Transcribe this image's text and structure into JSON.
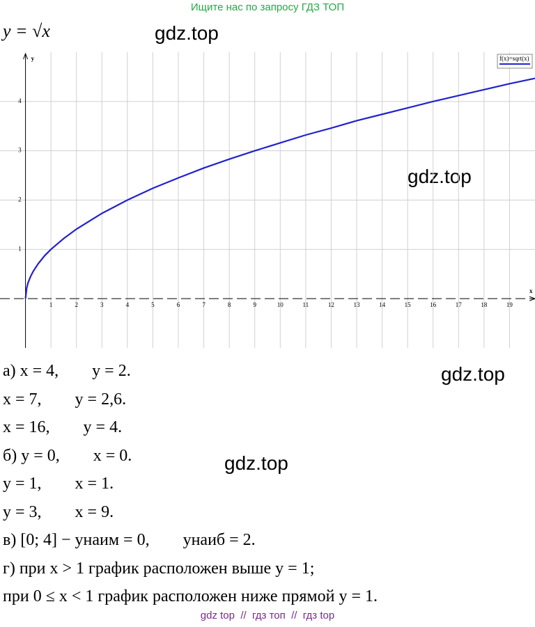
{
  "header": "Ищите нас по запросу ГДЗ ТОП",
  "formula": "y = √x",
  "watermarks": [
    "gdz.top",
    "gdz.top",
    "gdz.top",
    "gdz.top"
  ],
  "chart_data": {
    "type": "line",
    "x_label": "x",
    "y_label": "y",
    "x": [
      0,
      0.05,
      0.1,
      0.2,
      0.3,
      0.5,
      0.75,
      1,
      1.5,
      2,
      3,
      4,
      5,
      6,
      7,
      8,
      9,
      10,
      11,
      12,
      13,
      14,
      15,
      16,
      17,
      18,
      19,
      20
    ],
    "series": [
      {
        "name": "f(x)=sqrt(x)",
        "color": "#2222cc",
        "values": [
          0,
          0.22,
          0.32,
          0.45,
          0.55,
          0.71,
          0.87,
          1,
          1.22,
          1.41,
          1.73,
          2,
          2.24,
          2.45,
          2.65,
          2.83,
          3,
          3.16,
          3.32,
          3.46,
          3.61,
          3.74,
          3.87,
          4,
          4.12,
          4.24,
          4.36,
          4.47
        ]
      }
    ],
    "xlim": [
      -1,
      20
    ],
    "ylim": [
      -1,
      5
    ],
    "xticks": [
      1,
      2,
      3,
      4,
      5,
      6,
      7,
      8,
      9,
      10,
      11,
      12,
      13,
      14,
      15,
      16,
      17,
      18,
      19
    ],
    "yticks": [
      1,
      2,
      3,
      4
    ],
    "grid": true,
    "legend": "top-right"
  },
  "lines": [
    "а) x = 4,        y = 2.",
    "x = 7,        y = 2,6.",
    "x = 16,        y = 4.",
    "б) y = 0,        x = 0.",
    "y = 1,        x = 1.",
    "y = 3,        x = 9.",
    "в) [0; 4] − yнаим = 0,        yнаиб = 2.",
    "г) при x > 1 график расположен выше y = 1;",
    "при 0 ≤ x < 1 график расположен ниже прямой y = 1."
  ],
  "footer": "gdz top  //  гдз топ  //  гдз top"
}
